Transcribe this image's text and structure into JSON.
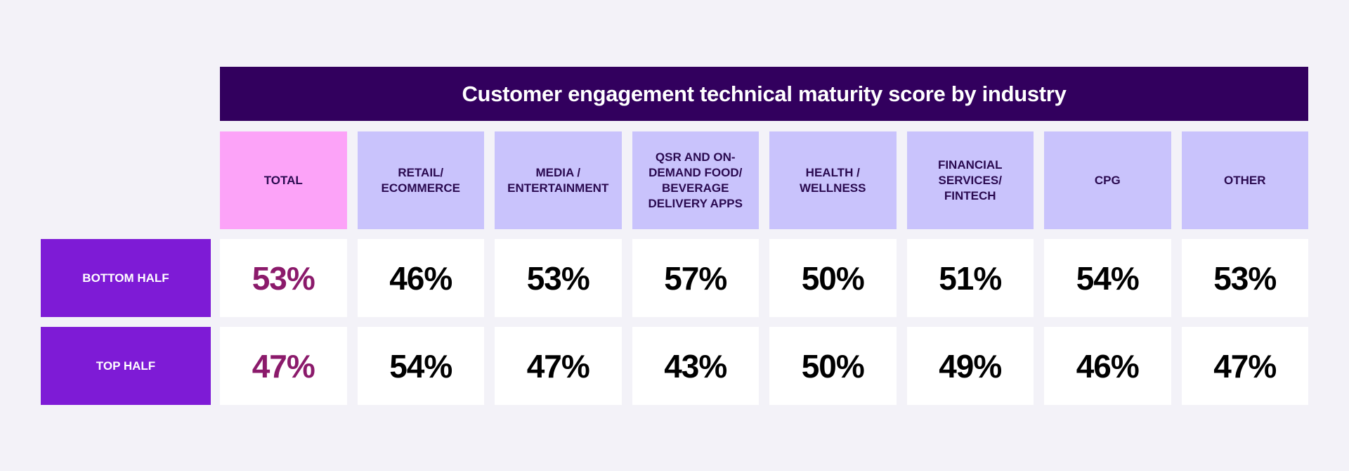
{
  "chart_data": {
    "type": "table",
    "title": "Customer engagement technical maturity score by industry",
    "columns": [
      "TOTAL",
      "RETAIL/\nECOMMERCE",
      "MEDIA /\nENTERTAINMENT",
      "QSR AND ON-\nDEMAND FOOD/\nBEVERAGE\nDELIVERY APPS",
      "HEALTH /\nWELLNESS",
      "FINANCIAL\nSERVICES/\nFINTECH",
      "CPG",
      "OTHER"
    ],
    "rows": [
      {
        "label": "BOTTOM HALF",
        "values": [
          "53%",
          "46%",
          "53%",
          "57%",
          "50%",
          "51%",
          "54%",
          "53%"
        ]
      },
      {
        "label": "TOP HALF",
        "values": [
          "47%",
          "54%",
          "47%",
          "43%",
          "50%",
          "49%",
          "46%",
          "47%"
        ]
      }
    ],
    "colors": {
      "title_bg": "#32005e",
      "total_header": "#fca3f8",
      "industry_header": "#c9c3fc",
      "row_label": "#7e1bd6",
      "total_value": "#8b1a6b"
    }
  }
}
